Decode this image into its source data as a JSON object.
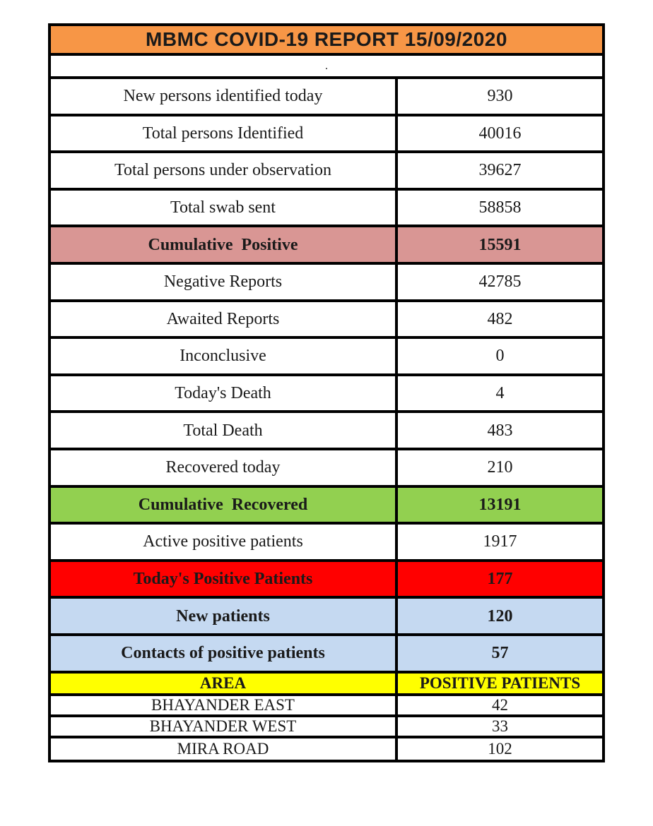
{
  "title": "MBMC COVID-19 REPORT 15/09/2020",
  "spacer": ".",
  "colors": {
    "orange": "#f79646",
    "rose": "#d99694",
    "green": "#92d050",
    "red": "#ff0000",
    "blue": "#c5d9f1",
    "yellow": "#ffff00",
    "border": "#000000",
    "text": "#1a1a1a",
    "page": "#ffffff"
  },
  "stats": [
    {
      "label": "New persons identified today",
      "value": "930"
    },
    {
      "label": "Total persons Identified",
      "value": "40016"
    },
    {
      "label": "Total persons under observation",
      "value": "39627"
    },
    {
      "label": "Total swab sent",
      "value": "58858"
    },
    {
      "label": "Cumulative  Positive",
      "value": "15591",
      "highlight": "rose"
    },
    {
      "label": "Negative Reports",
      "value": "42785"
    },
    {
      "label": "Awaited Reports",
      "value": "482"
    },
    {
      "label": "Inconclusive",
      "value": "0"
    },
    {
      "label": "Today's Death",
      "value": "4"
    },
    {
      "label": "Total Death",
      "value": "483"
    },
    {
      "label": "Recovered today",
      "value": "210"
    },
    {
      "label": "Cumulative  Recovered",
      "value": "13191",
      "highlight": "green"
    },
    {
      "label": "Active positive patients",
      "value": "1917"
    },
    {
      "label": "Today's Positive Patients",
      "value": "177",
      "highlight": "red"
    },
    {
      "label": "New patients",
      "value": "120",
      "highlight": "blue"
    },
    {
      "label": "Contacts of positive patients",
      "value": "57",
      "highlight": "blue"
    }
  ],
  "area_table": {
    "header": {
      "label": "AREA",
      "value": "POSITIVE PATIENTS"
    },
    "rows": [
      {
        "label": "BHAYANDER EAST",
        "value": "42"
      },
      {
        "label": "BHAYANDER WEST",
        "value": "33"
      },
      {
        "label": "MIRA ROAD",
        "value": "102"
      }
    ]
  }
}
